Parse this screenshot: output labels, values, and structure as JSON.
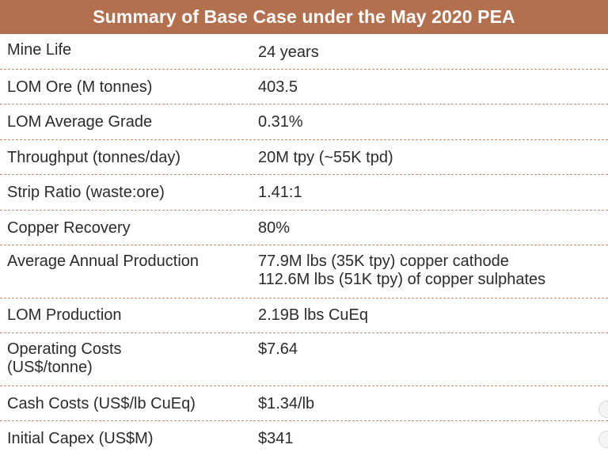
{
  "title": "Summary of Base Case under the May 2020 PEA",
  "colors": {
    "header_bg": "#b2704f",
    "header_text": "#ffffff",
    "row_divider": "#c98a66"
  },
  "rows": [
    {
      "label": "Mine Life",
      "value": "24 years"
    },
    {
      "label": "LOM Ore (M tonnes)",
      "value": "403.5"
    },
    {
      "label": "LOM Average Grade",
      "value": "0.31%"
    },
    {
      "label": "Throughput (tonnes/day)",
      "value": "20M tpy (~55K tpd)"
    },
    {
      "label": "Strip Ratio (waste:ore)",
      "value": "1.41:1"
    },
    {
      "label": "Copper Recovery",
      "value": "80%"
    },
    {
      "label": "Average Annual Production",
      "value": "77.9M lbs (35K tpy) copper cathode\n112.6M lbs (51K tpy) of copper sulphates"
    },
    {
      "label": "LOM Production",
      "value": "2.19B lbs CuEq"
    },
    {
      "label": "Operating Costs\n(US$/tonne)",
      "value": "$7.64"
    },
    {
      "label": "Cash Costs (US$/lb CuEq)",
      "value": "$1.34/lb"
    },
    {
      "label": "Initial Capex (US$M)",
      "value": "$341"
    }
  ]
}
